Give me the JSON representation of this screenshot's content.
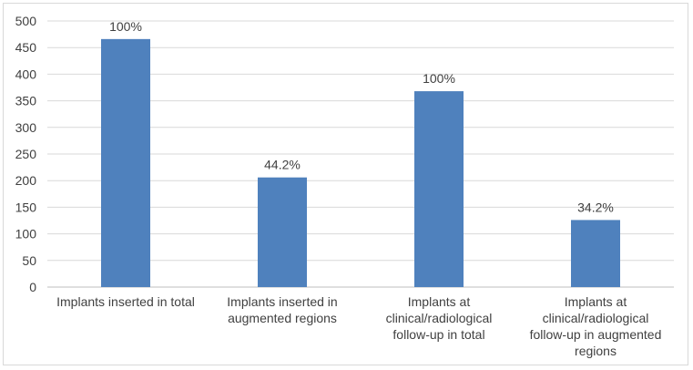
{
  "chart_data": {
    "type": "bar",
    "title": "",
    "xlabel": "",
    "ylabel": "",
    "ylim": [
      0,
      500
    ],
    "yticks": [
      0,
      50,
      100,
      150,
      200,
      250,
      300,
      350,
      400,
      450,
      500
    ],
    "grid": true,
    "categories": [
      [
        "Implants inserted in total"
      ],
      [
        "Implants inserted in",
        "augmented regions"
      ],
      [
        "Implants at",
        "clinical/radiological",
        "follow-up in total"
      ],
      [
        "Implants at",
        "clinical/radiological",
        "follow-up in augmented",
        "regions"
      ]
    ],
    "values": [
      466,
      206,
      368,
      126
    ],
    "data_labels": [
      "100%",
      "44.2%",
      "100%",
      "34.2%"
    ],
    "bar_color": "#4f81bd"
  }
}
